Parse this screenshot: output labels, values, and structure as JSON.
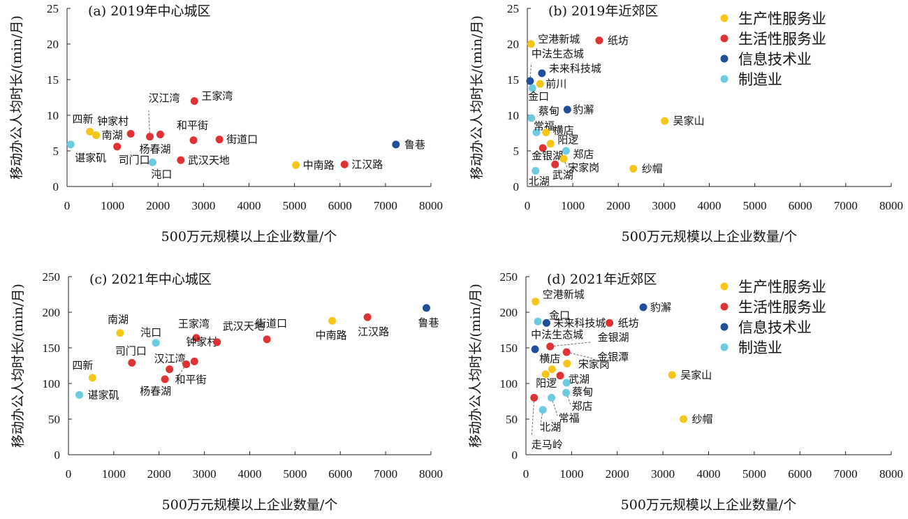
{
  "colors": {
    "生产性服务业": "#f5c518",
    "生活性服务业": "#e03232",
    "信息技术业": "#1f4e9c",
    "制造业": "#6ccbe0"
  },
  "legend": [
    "生产性服务业",
    "生活性服务业",
    "信息技术业",
    "制造业"
  ],
  "chart_data": [
    {
      "type": "scatter",
      "title": "(a) 2019年中心城区",
      "xlabel": "500万元规模以上企业数量/个",
      "ylabel": "移动办公人均时长/(min/月)",
      "xlim": [
        0,
        8000
      ],
      "ylim": [
        0,
        25
      ],
      "xticks": [
        "0",
        "1000",
        "2000",
        "3000",
        "4000",
        "5000",
        "6000",
        "7000",
        "8000"
      ],
      "yticks": [
        "0",
        "5",
        "10",
        "15",
        "20",
        "25"
      ],
      "legend": false,
      "points": [
        {
          "name": "四新",
          "x": 500,
          "y": 7.7,
          "category": "生产性服务业"
        },
        {
          "name": "南湖",
          "x": 640,
          "y": 7.2,
          "category": "生产性服务业"
        },
        {
          "name": "谌家矶",
          "x": 80,
          "y": 5.9,
          "category": "制造业"
        },
        {
          "name": "钟家村",
          "x": 1400,
          "y": 7.4,
          "category": "生活性服务业"
        },
        {
          "name": "司门口",
          "x": 1100,
          "y": 5.6,
          "category": "生活性服务业"
        },
        {
          "name": "汉江湾",
          "x": 1820,
          "y": 7.0,
          "category": "生活性服务业"
        },
        {
          "name": "杨春湖",
          "x": 2050,
          "y": 7.3,
          "category": "生活性服务业"
        },
        {
          "name": "沌口",
          "x": 1880,
          "y": 3.4,
          "category": "制造业"
        },
        {
          "name": "王家湾",
          "x": 2800,
          "y": 12.0,
          "category": "生活性服务业"
        },
        {
          "name": "和平街",
          "x": 2780,
          "y": 6.5,
          "category": "生活性服务业"
        },
        {
          "name": "武汉天地",
          "x": 2500,
          "y": 3.7,
          "category": "生活性服务业"
        },
        {
          "name": "街道口",
          "x": 3350,
          "y": 6.6,
          "category": "生活性服务业"
        },
        {
          "name": "中南路",
          "x": 5030,
          "y": 3.0,
          "category": "生产性服务业"
        },
        {
          "name": "江汉路",
          "x": 6100,
          "y": 3.1,
          "category": "生活性服务业"
        },
        {
          "name": "鲁巷",
          "x": 7230,
          "y": 5.9,
          "category": "信息技术业"
        }
      ]
    },
    {
      "type": "scatter",
      "title": "(b) 2019年近郊区",
      "xlabel": "500万元规模以上企业数量/个",
      "ylabel": "移动办公人均时长/(min/月)",
      "xlim": [
        0,
        8000
      ],
      "ylim": [
        0,
        25
      ],
      "xticks": [
        "0",
        "1000",
        "2000",
        "3000",
        "4000",
        "5000",
        "6000",
        "7000",
        "8000"
      ],
      "yticks": [
        "0",
        "5",
        "10",
        "15",
        "20",
        "25"
      ],
      "legend": "top-right",
      "points": [
        {
          "name": "空港新城",
          "x": 80,
          "y": 20.0,
          "category": "生产性服务业"
        },
        {
          "name": "纸坊",
          "x": 1580,
          "y": 20.5,
          "category": "生活性服务业"
        },
        {
          "name": "中法生态城",
          "x": 60,
          "y": 14.8,
          "category": "信息技术业"
        },
        {
          "name": "未来科技城",
          "x": 320,
          "y": 15.9,
          "category": "信息技术业"
        },
        {
          "name": "前川",
          "x": 280,
          "y": 14.4,
          "category": "生产性服务业"
        },
        {
          "name": "金口",
          "x": 110,
          "y": 13.8,
          "category": "制造业"
        },
        {
          "name": "蔡甸",
          "x": 90,
          "y": 9.6,
          "category": "制造业"
        },
        {
          "name": "豹澥",
          "x": 880,
          "y": 10.8,
          "category": "信息技术业"
        },
        {
          "name": "吴家山",
          "x": 3020,
          "y": 9.2,
          "category": "生产性服务业"
        },
        {
          "name": "常福",
          "x": 200,
          "y": 7.6,
          "category": "制造业"
        },
        {
          "name": "横店",
          "x": 410,
          "y": 7.6,
          "category": "生产性服务业"
        },
        {
          "name": "阳逻",
          "x": 510,
          "y": 6.0,
          "category": "生产性服务业"
        },
        {
          "name": "金银湖",
          "x": 340,
          "y": 5.4,
          "category": "生活性服务业"
        },
        {
          "name": "郑店",
          "x": 850,
          "y": 5.0,
          "category": "制造业"
        },
        {
          "name": "宋家岗",
          "x": 800,
          "y": 3.9,
          "category": "生产性服务业"
        },
        {
          "name": "武湖",
          "x": 610,
          "y": 3.1,
          "category": "生活性服务业"
        },
        {
          "name": "纱帽",
          "x": 2330,
          "y": 2.5,
          "category": "生产性服务业"
        },
        {
          "name": "北湖",
          "x": 180,
          "y": 2.2,
          "category": "制造业"
        }
      ]
    },
    {
      "type": "scatter",
      "title": "(c) 2021年中心城区",
      "xlabel": "500万元规模以上企业数量/个",
      "ylabel": "移动办公人均时长/(min/月)",
      "xlim": [
        0,
        8000
      ],
      "ylim": [
        0,
        250
      ],
      "xticks": [
        "0",
        "1000",
        "2000",
        "3000",
        "4000",
        "5000",
        "6000",
        "7000",
        "8000"
      ],
      "yticks": [
        "0",
        "50",
        "100",
        "150",
        "200",
        "250"
      ],
      "legend": false,
      "points": [
        {
          "name": "四新",
          "x": 530,
          "y": 108,
          "category": "生产性服务业"
        },
        {
          "name": "谌家矶",
          "x": 240,
          "y": 84,
          "category": "制造业"
        },
        {
          "name": "南湖",
          "x": 1140,
          "y": 171,
          "category": "生产性服务业"
        },
        {
          "name": "司门口",
          "x": 1400,
          "y": 129,
          "category": "生活性服务业"
        },
        {
          "name": "沌口",
          "x": 1930,
          "y": 157,
          "category": "制造业"
        },
        {
          "name": "汉江湾",
          "x": 2230,
          "y": 120,
          "category": "生活性服务业"
        },
        {
          "name": "杨春湖",
          "x": 2130,
          "y": 106,
          "category": "生活性服务业"
        },
        {
          "name": "和平街",
          "x": 2600,
          "y": 127,
          "category": "生活性服务业"
        },
        {
          "name": "王家湾",
          "x": 2820,
          "y": 164,
          "category": "生活性服务业"
        },
        {
          "name": "钟家村",
          "x": 2780,
          "y": 131,
          "category": "生活性服务业"
        },
        {
          "name": "武汉天地",
          "x": 3280,
          "y": 158,
          "category": "生活性服务业"
        },
        {
          "name": "街道口",
          "x": 4380,
          "y": 162,
          "category": "生活性服务业"
        },
        {
          "name": "中南路",
          "x": 5820,
          "y": 188,
          "category": "生产性服务业"
        },
        {
          "name": "江汉路",
          "x": 6600,
          "y": 193,
          "category": "生活性服务业"
        },
        {
          "name": "鲁巷",
          "x": 7900,
          "y": 206,
          "category": "信息技术业"
        }
      ]
    },
    {
      "type": "scatter",
      "title": "(d) 2021年近郊区",
      "xlabel": "500万元规模以上企业数量/个",
      "ylabel": "移动办公人均时长/(min/月)",
      "xlim": [
        0,
        8000
      ],
      "ylim": [
        0,
        250
      ],
      "xticks": [
        "0",
        "1000",
        "2000",
        "3000",
        "4000",
        "5000",
        "6000",
        "7000",
        "8000"
      ],
      "yticks": [
        "0",
        "50",
        "100",
        "150",
        "200",
        "250"
      ],
      "legend": "top-right",
      "points": [
        {
          "name": "空港新城",
          "x": 210,
          "y": 215,
          "category": "生产性服务业"
        },
        {
          "name": "金口",
          "x": 260,
          "y": 187,
          "category": "制造业"
        },
        {
          "name": "未来科技城",
          "x": 450,
          "y": 185,
          "category": "信息技术业"
        },
        {
          "name": "纸坊",
          "x": 1830,
          "y": 185,
          "category": "生活性服务业"
        },
        {
          "name": "豹澥",
          "x": 2570,
          "y": 207,
          "category": "信息技术业"
        },
        {
          "name": "中法生态城",
          "x": 200,
          "y": 148,
          "category": "信息技术业"
        },
        {
          "name": "金银湖",
          "x": 530,
          "y": 152,
          "category": "生活性服务业"
        },
        {
          "name": "金银潭",
          "x": 890,
          "y": 144,
          "category": "生活性服务业"
        },
        {
          "name": "横店",
          "x": 570,
          "y": 120,
          "category": "生产性服务业"
        },
        {
          "name": "宋家岗",
          "x": 900,
          "y": 128,
          "category": "生产性服务业"
        },
        {
          "name": "阳逻",
          "x": 430,
          "y": 113,
          "category": "生产性服务业"
        },
        {
          "name": "武湖",
          "x": 750,
          "y": 111,
          "category": "生活性服务业"
        },
        {
          "name": "蔡甸",
          "x": 890,
          "y": 101,
          "category": "制造业"
        },
        {
          "name": "郑店",
          "x": 880,
          "y": 87,
          "category": "制造业"
        },
        {
          "name": "常福",
          "x": 560,
          "y": 80,
          "category": "制造业"
        },
        {
          "name": "走马岭",
          "x": 180,
          "y": 80,
          "category": "生活性服务业"
        },
        {
          "name": "北湖",
          "x": 370,
          "y": 63,
          "category": "制造业"
        },
        {
          "name": "吴家山",
          "x": 3200,
          "y": 112,
          "category": "生产性服务业"
        },
        {
          "name": "纱帽",
          "x": 3450,
          "y": 50,
          "category": "生产性服务业"
        }
      ]
    }
  ]
}
